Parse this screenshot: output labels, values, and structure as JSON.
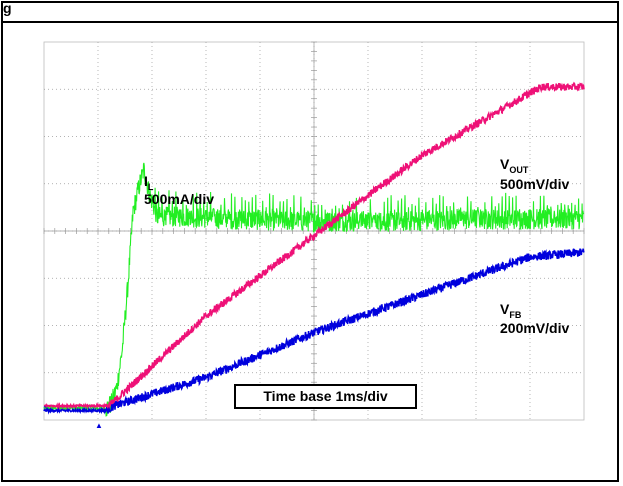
{
  "chart_data": {
    "type": "line",
    "title": "",
    "annotation": "Time base 1ms/div",
    "grid": true,
    "divisions": {
      "x": 10,
      "y": 8
    },
    "xlim": [
      0,
      10
    ],
    "ylim": [
      0,
      8
    ],
    "series": [
      {
        "name": "I",
        "subscript": "L",
        "scale": "500mA/div",
        "color": "#22ee22",
        "x": [
          0,
          1.15,
          1.25,
          1.35,
          1.45,
          1.55,
          1.65,
          1.75,
          1.85,
          1.95,
          2.1,
          2.5,
          3.5,
          5.0,
          6.5,
          8.0,
          10.0
        ],
        "y": [
          0.25,
          0.25,
          0.35,
          0.7,
          1.5,
          2.8,
          4.4,
          4.9,
          5.3,
          4.8,
          4.3,
          4.3,
          4.25,
          4.2,
          4.2,
          4.25,
          4.25
        ],
        "noise": 0.22
      },
      {
        "name": "V",
        "subscript": "OUT",
        "scale": "500mV/div",
        "color": "#ee1177",
        "x": [
          0,
          1.2,
          1.4,
          3.0,
          5.0,
          7.0,
          9.2,
          10.0
        ],
        "y": [
          0.3,
          0.3,
          0.5,
          2.2,
          3.9,
          5.6,
          7.05,
          7.05
        ],
        "noise": 0.08
      },
      {
        "name": "V",
        "subscript": "FB",
        "scale": "200mV/div",
        "color": "#0000dd",
        "x": [
          0,
          1.15,
          1.3,
          2.0,
          3.0,
          5.0,
          7.0,
          9.0,
          10.0
        ],
        "y": [
          0.2,
          0.2,
          0.3,
          0.55,
          0.9,
          1.85,
          2.65,
          3.45,
          3.55
        ],
        "noise": 0.09
      }
    ]
  },
  "header": {
    "glyph": "g"
  },
  "markers": {
    "left_ref": "1",
    "trigger": "▲"
  }
}
